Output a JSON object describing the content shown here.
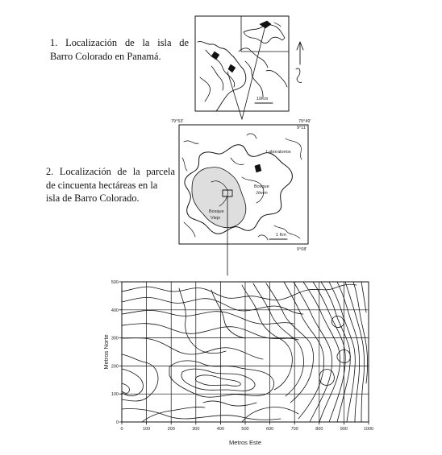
{
  "captions": {
    "map1": [
      "1. Localización de la isla de",
      "Barro Colorado en Panamá."
    ],
    "map2": [
      "2. Localización de la parcela",
      "de cincuenta hectáreas en la",
      "isla de Barro Colorado."
    ]
  },
  "map1": {
    "scale_label": "10Km"
  },
  "map2": {
    "coord_tl": "79°53'",
    "coord_tr": "79°49'",
    "coord_right_top": "9°11'",
    "coord_br": "9°08'",
    "labels": {
      "laboratorios": "Laboratorios",
      "bosque_joven": [
        "Bosque",
        "Jóven"
      ],
      "bosque_viejo": [
        "Bosque",
        "Viejo"
      ],
      "scale": "1 Km"
    }
  },
  "plot": {
    "xlabel": "Metros Este",
    "ylabel": "Metros Norte",
    "x_ticks": [
      "0",
      "100",
      "200",
      "300",
      "400",
      "500",
      "600",
      "700",
      "800",
      "900",
      "1000"
    ],
    "y_ticks": [
      "0",
      "100",
      "200",
      "300",
      "400",
      "500"
    ],
    "xlim": [
      0,
      1000
    ],
    "ylim": [
      0,
      500
    ],
    "grid_step_x": 100,
    "grid_step_y": 100
  }
}
